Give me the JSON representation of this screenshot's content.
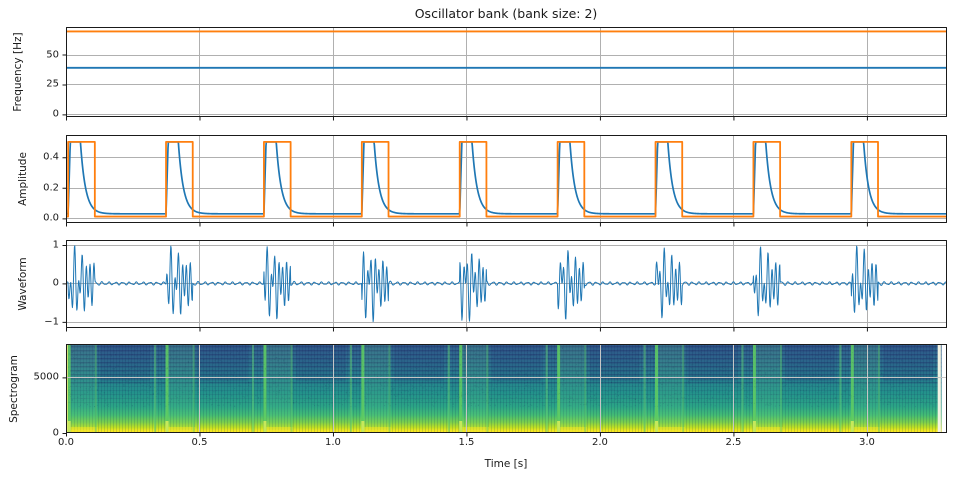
{
  "title": "Oscillator bank (bank size: 2)",
  "x_axis": {
    "label": "Time [s]",
    "lim": [
      0,
      3.3
    ],
    "ticks": [
      {
        "v": 0.0,
        "label": "0.0"
      },
      {
        "v": 0.5,
        "label": "0.5"
      },
      {
        "v": 1.0,
        "label": "1.0"
      },
      {
        "v": 1.5,
        "label": "1.5"
      },
      {
        "v": 2.0,
        "label": "2.0"
      },
      {
        "v": 2.5,
        "label": "2.5"
      },
      {
        "v": 3.0,
        "label": "3.0"
      }
    ]
  },
  "pulses": {
    "start": 0.008,
    "period": 0.3667,
    "count": 9,
    "width": 0.1
  },
  "oscillators": [
    {
      "name": "oscillator-1",
      "frequency_hz": 38.9,
      "color": "#1f77b4"
    },
    {
      "name": "oscillator-2",
      "frequency_hz": 69.3,
      "color": "#ff7f0e"
    }
  ],
  "style": {
    "grid_color": "#b0b0b0",
    "grid_color_on_image": "#c6c6c6",
    "spine_color": "#1a1a1a",
    "tick_color": "#1a1a1a"
  },
  "chart_data": [
    {
      "id": "frequency",
      "type": "line",
      "ylabel": "Frequency [Hz]",
      "ylim": [
        -2.2,
        73
      ],
      "yticks": [
        {
          "v": 0,
          "label": "0"
        },
        {
          "v": 25,
          "label": "25"
        },
        {
          "v": 50,
          "label": "50"
        }
      ],
      "series": [
        {
          "name": "osc-1-frequency",
          "kind": "constant",
          "value": 38.9,
          "color": "#1f77b4",
          "lw": 1.8
        },
        {
          "name": "osc-2-frequency",
          "kind": "constant",
          "value": 69.3,
          "color": "#ff7f0e",
          "lw": 1.8
        }
      ]
    },
    {
      "id": "amplitude",
      "type": "line",
      "ylabel": "Amplitude",
      "ylim": [
        -0.03,
        0.545
      ],
      "yticks": [
        {
          "v": 0.0,
          "label": "0.0"
        },
        {
          "v": 0.2,
          "label": "0.2"
        },
        {
          "v": 0.4,
          "label": "0.4"
        }
      ],
      "series": [
        {
          "name": "decay-envelope",
          "kind": "decay-envelope",
          "peak": 0.5,
          "floor": 0.03,
          "attack": 0.008,
          "hold": 0.038,
          "tau": 0.019,
          "color": "#1f77b4",
          "lw": 1.7
        },
        {
          "name": "square-envelope",
          "kind": "square-envelope",
          "high": 0.5,
          "low": 0.012,
          "width": 0.1,
          "color": "#ff7f0e",
          "lw": 1.8
        }
      ]
    },
    {
      "id": "waveform",
      "type": "line",
      "ylabel": "Waveform",
      "ylim": [
        -1.16,
        1.13
      ],
      "yticks": [
        {
          "v": -1,
          "label": "−1"
        },
        {
          "v": 0,
          "label": "0"
        },
        {
          "v": 1,
          "label": "1"
        }
      ],
      "series": [
        {
          "name": "synth-waveform",
          "kind": "synth",
          "color": "#1f77b4",
          "lw": 1.0,
          "components": [
            {
              "freq": 38.9,
              "envelope": "decay-envelope"
            },
            {
              "freq": 69.3,
              "envelope": "square-envelope"
            }
          ]
        }
      ]
    },
    {
      "id": "spectrogram",
      "type": "heatmap",
      "ylabel": "Spectrogram",
      "flim": [
        0,
        8000
      ],
      "t_end": 3.28,
      "yticks": [
        {
          "v": 0,
          "label": "0"
        },
        {
          "v": 5000,
          "label": "5000"
        }
      ],
      "palette_top_to_bottom": [
        {
          "pos": 0.0,
          "color": "#31608e"
        },
        {
          "pos": 0.18,
          "color": "#2d6d8e"
        },
        {
          "pos": 0.38,
          "color": "#27818e"
        },
        {
          "pos": 0.55,
          "color": "#23928b"
        },
        {
          "pos": 0.7,
          "color": "#2ba486"
        },
        {
          "pos": 0.8,
          "color": "#44bc74"
        },
        {
          "pos": 0.88,
          "color": "#7ccf4c"
        },
        {
          "pos": 0.94,
          "color": "#c2e022"
        },
        {
          "pos": 0.975,
          "color": "#f4e81f"
        },
        {
          "pos": 1.0,
          "color": "#fde725"
        }
      ],
      "overlays": {
        "comb_color": "rgba(16,40,88,0.15)",
        "comb_step": 3,
        "stripe_color_strong": "rgba(28,28,90,0.30)",
        "stripe_color_faint": "rgba(28,28,90,0.10)",
        "sustain_top_tint": "rgba(35,45,110,0.14)",
        "pulse_tint": "rgba(110,215,135,0.15)",
        "pulse_floor_glow": "rgba(253,231,37,0.45)",
        "pre_band_color": "rgba(96,206,120,0.50)",
        "onset_band_color": "rgba(96,206,98,0.85)",
        "onset_band_base": "rgba(210,235,90,0.90)",
        "release_band_color": "rgba(92,200,110,0.45)",
        "start_column_color": "rgba(222,236,112,0.90)",
        "end_column_color": "#f3f3e2",
        "noise_color": "rgba(20,30,80,0.10)"
      },
      "bands": {
        "pre_offset": -0.045,
        "release_offset": 0.1
      }
    }
  ]
}
